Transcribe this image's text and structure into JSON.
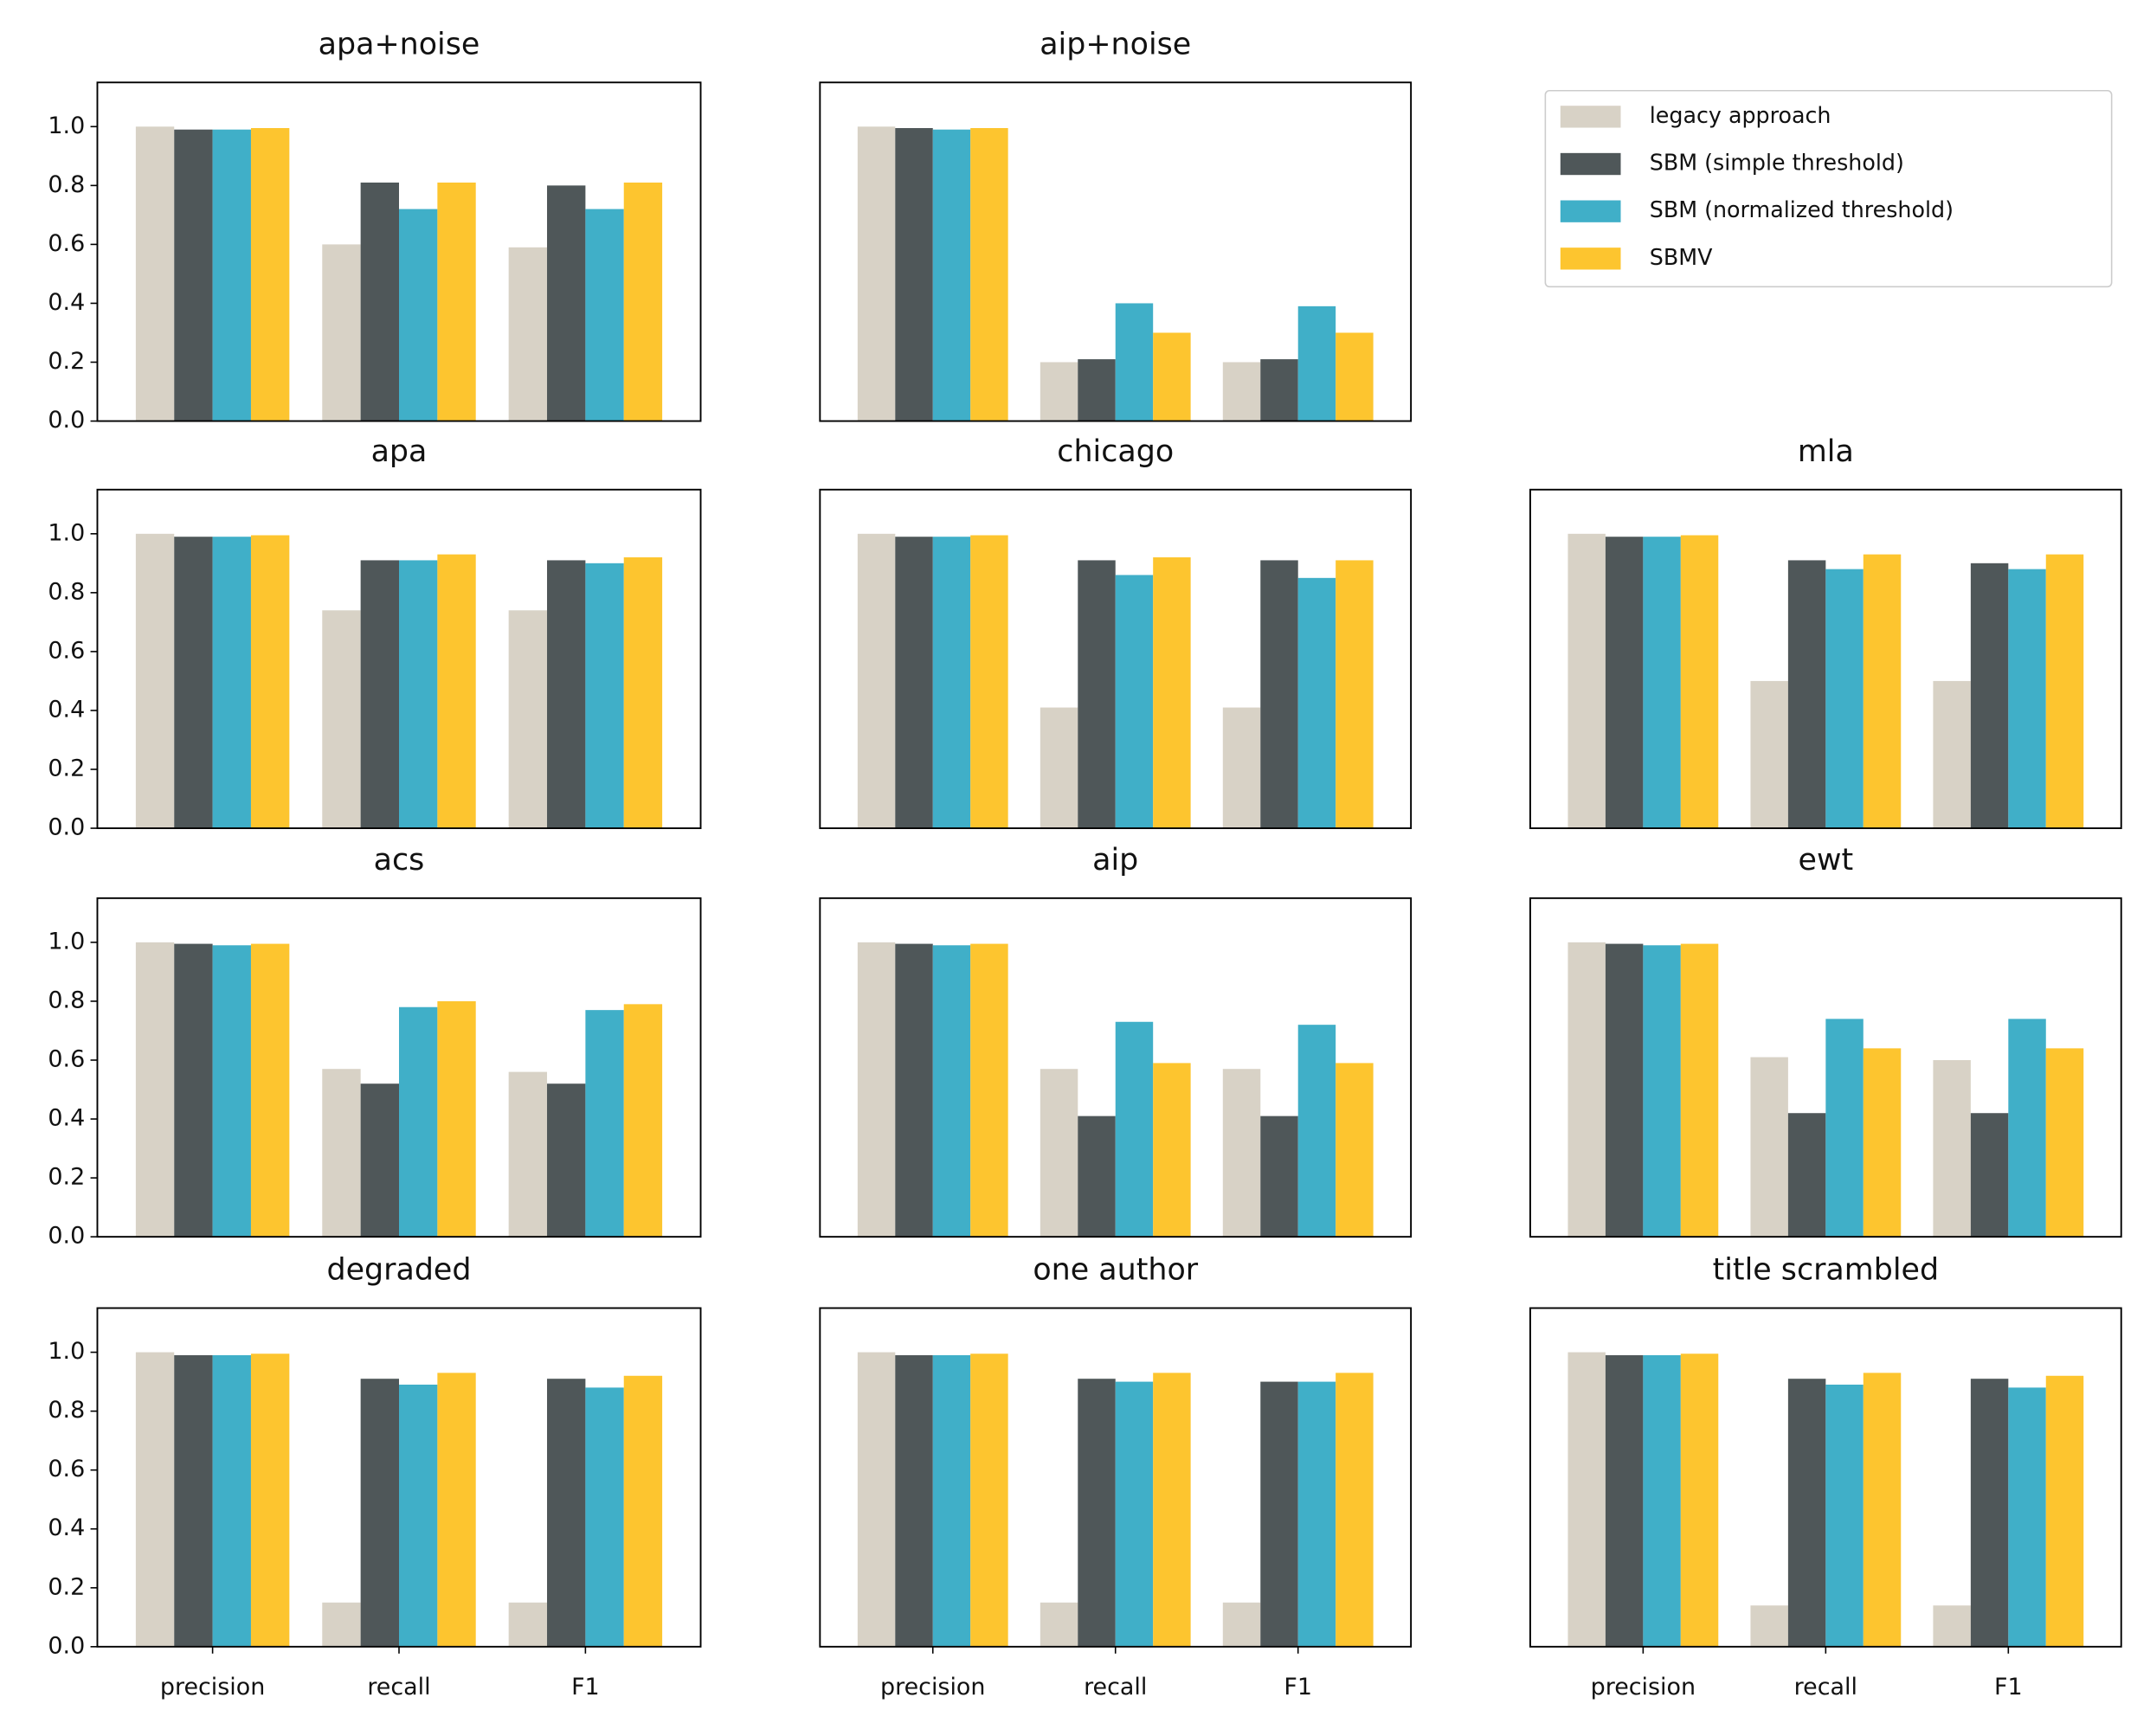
{
  "chart_data": [
    {
      "type": "bar",
      "title": "apa+noise",
      "ylim": [
        0,
        1.15
      ],
      "yticks": [
        {
          "value": 0,
          "label": "0.0"
        },
        {
          "value": 0.2,
          "label": "0.2"
        },
        {
          "value": 0.4,
          "label": "0.4"
        },
        {
          "value": 0.6,
          "label": "0.6"
        },
        {
          "value": 0.8,
          "label": "0.8"
        },
        {
          "value": 1,
          "label": "1.0"
        }
      ],
      "series": [
        {
          "name": "legacy approach",
          "color": "#d8d2c6",
          "values": [
            1.0,
            0.6,
            0.59
          ]
        },
        {
          "name": "SBM (simple threshold)",
          "color": "#4f5759",
          "values": [
            0.99,
            0.81,
            0.8
          ]
        },
        {
          "name": "SBM (normalized threshold)",
          "color": "#40afc8",
          "values": [
            0.99,
            0.72,
            0.72
          ]
        },
        {
          "name": "SBMV",
          "color": "#fdc52f",
          "values": [
            0.995,
            0.81,
            0.81
          ]
        }
      ]
    },
    {
      "type": "bar",
      "title": "aip+noise",
      "ylim": [
        0,
        1.15
      ],
      "series": [
        {
          "color": "#d8d2c6",
          "values": [
            1.0,
            0.2,
            0.2
          ]
        },
        {
          "color": "#4f5759",
          "values": [
            0.995,
            0.21,
            0.21
          ]
        },
        {
          "color": "#40afc8",
          "values": [
            0.99,
            0.4,
            0.39
          ]
        },
        {
          "color": "#fdc52f",
          "values": [
            0.995,
            0.3,
            0.3
          ]
        }
      ]
    },
    {
      "type": "bar",
      "title": "apa",
      "ylim": [
        0,
        1.15
      ],
      "yticks": [
        {
          "value": 0,
          "label": "0.0"
        },
        {
          "value": 0.2,
          "label": "0.2"
        },
        {
          "value": 0.4,
          "label": "0.4"
        },
        {
          "value": 0.6,
          "label": "0.6"
        },
        {
          "value": 0.8,
          "label": "0.8"
        },
        {
          "value": 1,
          "label": "1.0"
        }
      ],
      "series": [
        {
          "color": "#d8d2c6",
          "values": [
            1.0,
            0.74,
            0.74
          ]
        },
        {
          "color": "#4f5759",
          "values": [
            0.99,
            0.91,
            0.91
          ]
        },
        {
          "color": "#40afc8",
          "values": [
            0.99,
            0.91,
            0.9
          ]
        },
        {
          "color": "#fdc52f",
          "values": [
            0.995,
            0.93,
            0.92
          ]
        }
      ]
    },
    {
      "type": "bar",
      "title": "chicago",
      "ylim": [
        0,
        1.15
      ],
      "series": [
        {
          "color": "#d8d2c6",
          "values": [
            1.0,
            0.41,
            0.41
          ]
        },
        {
          "color": "#4f5759",
          "values": [
            0.99,
            0.91,
            0.91
          ]
        },
        {
          "color": "#40afc8",
          "values": [
            0.99,
            0.86,
            0.85
          ]
        },
        {
          "color": "#fdc52f",
          "values": [
            0.995,
            0.92,
            0.91
          ]
        }
      ]
    },
    {
      "type": "bar",
      "title": "mla",
      "ylim": [
        0,
        1.15
      ],
      "series": [
        {
          "color": "#d8d2c6",
          "values": [
            1.0,
            0.5,
            0.5
          ]
        },
        {
          "color": "#4f5759",
          "values": [
            0.99,
            0.91,
            0.9
          ]
        },
        {
          "color": "#40afc8",
          "values": [
            0.99,
            0.88,
            0.88
          ]
        },
        {
          "color": "#fdc52f",
          "values": [
            0.995,
            0.93,
            0.93
          ]
        }
      ]
    },
    {
      "type": "bar",
      "title": "acs",
      "ylim": [
        0,
        1.15
      ],
      "yticks": [
        {
          "value": 0,
          "label": "0.0"
        },
        {
          "value": 0.2,
          "label": "0.2"
        },
        {
          "value": 0.4,
          "label": "0.4"
        },
        {
          "value": 0.6,
          "label": "0.6"
        },
        {
          "value": 0.8,
          "label": "0.8"
        },
        {
          "value": 1,
          "label": "1.0"
        }
      ],
      "series": [
        {
          "color": "#d8d2c6",
          "values": [
            1.0,
            0.57,
            0.56
          ]
        },
        {
          "color": "#4f5759",
          "values": [
            0.995,
            0.52,
            0.52
          ]
        },
        {
          "color": "#40afc8",
          "values": [
            0.99,
            0.78,
            0.77
          ]
        },
        {
          "color": "#fdc52f",
          "values": [
            0.995,
            0.8,
            0.79
          ]
        }
      ]
    },
    {
      "type": "bar",
      "title": "aip",
      "ylim": [
        0,
        1.15
      ],
      "series": [
        {
          "color": "#d8d2c6",
          "values": [
            1.0,
            0.57,
            0.57
          ]
        },
        {
          "color": "#4f5759",
          "values": [
            0.995,
            0.41,
            0.41
          ]
        },
        {
          "color": "#40afc8",
          "values": [
            0.99,
            0.73,
            0.72
          ]
        },
        {
          "color": "#fdc52f",
          "values": [
            0.995,
            0.59,
            0.59
          ]
        }
      ]
    },
    {
      "type": "bar",
      "title": "ewt",
      "ylim": [
        0,
        1.15
      ],
      "series": [
        {
          "color": "#d8d2c6",
          "values": [
            1.0,
            0.61,
            0.6
          ]
        },
        {
          "color": "#4f5759",
          "values": [
            0.995,
            0.42,
            0.42
          ]
        },
        {
          "color": "#40afc8",
          "values": [
            0.99,
            0.74,
            0.74
          ]
        },
        {
          "color": "#fdc52f",
          "values": [
            0.995,
            0.64,
            0.64
          ]
        }
      ]
    },
    {
      "type": "bar",
      "title": "degraded",
      "categories": [
        "precision",
        "recall",
        "F1"
      ],
      "ylim": [
        0,
        1.15
      ],
      "yticks": [
        {
          "value": 0,
          "label": "0.0"
        },
        {
          "value": 0.2,
          "label": "0.2"
        },
        {
          "value": 0.4,
          "label": "0.4"
        },
        {
          "value": 0.6,
          "label": "0.6"
        },
        {
          "value": 0.8,
          "label": "0.8"
        },
        {
          "value": 1,
          "label": "1.0"
        }
      ],
      "series": [
        {
          "color": "#d8d2c6",
          "values": [
            1.0,
            0.15,
            0.15
          ]
        },
        {
          "color": "#4f5759",
          "values": [
            0.99,
            0.91,
            0.91
          ]
        },
        {
          "color": "#40afc8",
          "values": [
            0.99,
            0.89,
            0.88
          ]
        },
        {
          "color": "#fdc52f",
          "values": [
            0.995,
            0.93,
            0.92
          ]
        }
      ]
    },
    {
      "type": "bar",
      "title": "one author",
      "categories": [
        "precision",
        "recall",
        "F1"
      ],
      "ylim": [
        0,
        1.15
      ],
      "series": [
        {
          "color": "#d8d2c6",
          "values": [
            1.0,
            0.15,
            0.15
          ]
        },
        {
          "color": "#4f5759",
          "values": [
            0.99,
            0.91,
            0.9
          ]
        },
        {
          "color": "#40afc8",
          "values": [
            0.99,
            0.9,
            0.9
          ]
        },
        {
          "color": "#fdc52f",
          "values": [
            0.995,
            0.93,
            0.93
          ]
        }
      ]
    },
    {
      "type": "bar",
      "title": "title scrambled",
      "categories": [
        "precision",
        "recall",
        "F1"
      ],
      "ylim": [
        0,
        1.15
      ],
      "series": [
        {
          "color": "#d8d2c6",
          "values": [
            1.0,
            0.14,
            0.14
          ]
        },
        {
          "color": "#4f5759",
          "values": [
            0.99,
            0.91,
            0.91
          ]
        },
        {
          "color": "#40afc8",
          "values": [
            0.99,
            0.89,
            0.88
          ]
        },
        {
          "color": "#fdc52f",
          "values": [
            0.995,
            0.93,
            0.92
          ]
        }
      ]
    }
  ]
}
